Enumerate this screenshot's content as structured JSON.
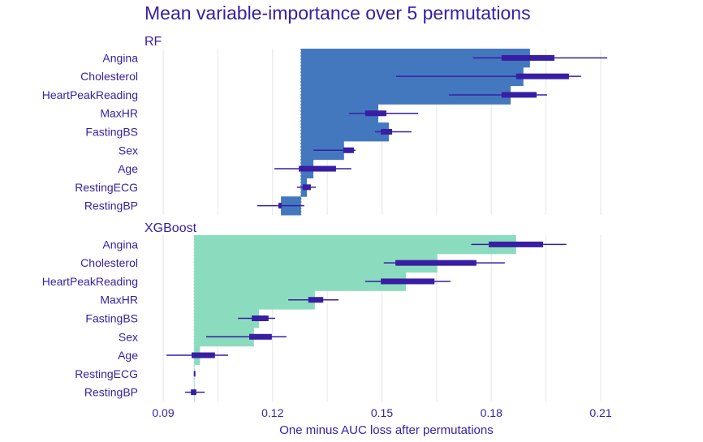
{
  "chart_data": {
    "type": "bar",
    "title": "Mean variable-importance over 5 permutations",
    "xlabel": "One minus AUC loss after permutations",
    "ylabel": "",
    "xlim": [
      0.0855,
      0.2145
    ],
    "xticks": [
      0.09,
      0.12,
      0.15,
      0.18,
      0.21
    ],
    "xtick_labels": [
      "0.09",
      "0.12",
      "0.15",
      "0.18",
      "0.21"
    ],
    "grid": true,
    "categories": [
      "Angina",
      "Cholesterol",
      "HeartPeakReading",
      "MaxHR",
      "FastingBS",
      "Sex",
      "Age",
      "RestingECG",
      "RestingBP"
    ],
    "panels": [
      {
        "name": "RF",
        "color": "#4378bf",
        "baseline": 0.1278,
        "values": [
          0.1906,
          0.1888,
          0.1853,
          0.149,
          0.1519,
          0.1396,
          0.1312,
          0.1294,
          0.1223
        ],
        "boxplots": [
          {
            "min": 0.175,
            "q1": 0.1828,
            "q3": 0.1973,
            "max": 0.2118
          },
          {
            "min": 0.1539,
            "q1": 0.1868,
            "q3": 0.2013,
            "max": 0.2046
          },
          {
            "min": 0.1684,
            "q1": 0.1828,
            "q3": 0.1924,
            "max": 0.1953
          },
          {
            "min": 0.141,
            "q1": 0.1454,
            "q3": 0.1512,
            "max": 0.1599
          },
          {
            "min": 0.1481,
            "q1": 0.1497,
            "q3": 0.1528,
            "max": 0.1581
          },
          {
            "min": 0.1312,
            "q1": 0.1394,
            "q3": 0.1423,
            "max": 0.1428
          },
          {
            "min": 0.1205,
            "q1": 0.1272,
            "q3": 0.1374,
            "max": 0.1416
          },
          {
            "min": 0.1267,
            "q1": 0.1283,
            "q3": 0.1305,
            "max": 0.1319
          },
          {
            "min": 0.1158,
            "q1": 0.1216,
            "q3": 0.1225,
            "max": 0.1287
          }
        ]
      },
      {
        "name": "XGBoost",
        "color": "#8bdcbe",
        "baseline": 0.0985,
        "values": [
          0.1868,
          0.1652,
          0.1566,
          0.1316,
          0.1163,
          0.1149,
          0.1001,
          0.0986,
          0.0985
        ],
        "boxplots": [
          {
            "min": 0.1745,
            "q1": 0.1793,
            "q3": 0.1942,
            "max": 0.2006
          },
          {
            "min": 0.1505,
            "q1": 0.1537,
            "q3": 0.1759,
            "max": 0.1837
          },
          {
            "min": 0.1454,
            "q1": 0.1497,
            "q3": 0.1644,
            "max": 0.1688
          },
          {
            "min": 0.1243,
            "q1": 0.1298,
            "q3": 0.1339,
            "max": 0.1381
          },
          {
            "min": 0.1105,
            "q1": 0.1143,
            "q3": 0.1189,
            "max": 0.1207
          },
          {
            "min": 0.1018,
            "q1": 0.1136,
            "q3": 0.1198,
            "max": 0.1238
          },
          {
            "min": 0.0909,
            "q1": 0.0978,
            "q3": 0.1042,
            "max": 0.1078
          },
          {
            "min": 0.0984,
            "q1": 0.0984,
            "q3": 0.0987,
            "max": 0.0987
          },
          {
            "min": 0.096,
            "q1": 0.0976,
            "q3": 0.0991,
            "max": 0.1014
          }
        ]
      }
    ],
    "boxplot_color": "#371ea3",
    "text_color": "#371ea3",
    "grid_color": "#e6e6e6"
  }
}
